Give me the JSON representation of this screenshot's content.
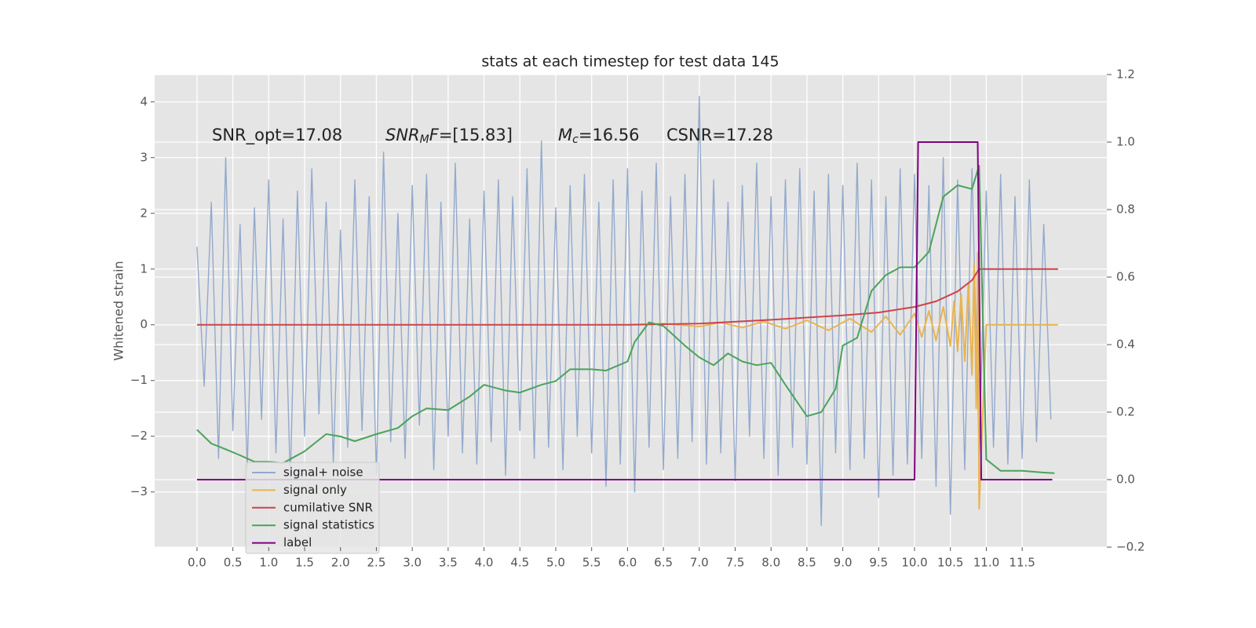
{
  "chart_data": {
    "type": "line",
    "title": "stats at each timestep for test data 145",
    "ylabel": "Whitened strain",
    "annotations": [
      [
        "SNR_opt=17.08"
      ],
      [
        "SNR",
        "M",
        "F=[15.83]"
      ],
      [
        "M",
        "c",
        "=16.56"
      ],
      [
        "CSNR=17.28"
      ]
    ],
    "xlim": [
      -0.59,
      12.68
    ],
    "xticks": [
      {
        "value": 0,
        "label": "0.0"
      },
      0.5,
      {
        "value": 1,
        "label": "1.0"
      },
      1.5,
      {
        "value": 2,
        "label": "2.0"
      },
      2.5,
      {
        "value": 3,
        "label": "3.0"
      },
      3.5,
      {
        "value": 4,
        "label": "4.0"
      },
      4.5,
      {
        "value": 5,
        "label": "5.0"
      },
      5.5,
      {
        "value": 6,
        "label": "6.0"
      },
      6.5,
      {
        "value": 7,
        "label": "7.0"
      },
      7.5,
      {
        "value": 8,
        "label": "8.0"
      },
      8.5,
      {
        "value": 9,
        "label": "9.0"
      },
      9.5,
      {
        "value": 10,
        "label": "10.0"
      },
      10.5,
      {
        "value": 11,
        "label": "11.0"
      },
      11.5
    ],
    "ylim": [
      -3.99,
      4.49
    ],
    "yticks": [
      {
        "value": -3,
        "label": "−3"
      },
      {
        "value": -2,
        "label": "−2"
      },
      {
        "value": -1,
        "label": "−1"
      },
      0,
      1,
      2,
      3,
      4
    ],
    "y2lim": [
      -0.2,
      1.2
    ],
    "y2ticks": [
      {
        "value": -0.2,
        "label": "−0.2"
      },
      {
        "value": 0,
        "label": "0.0"
      },
      0.2,
      0.4,
      0.6,
      0.8,
      {
        "value": 1,
        "label": "1.0"
      },
      1.2
    ],
    "grid": true,
    "legend": "lower left",
    "series": [
      {
        "name": "signal+ noise",
        "color": "#93a9cc",
        "x": [
          0.0,
          0.1,
          0.2,
          0.3,
          0.4,
          0.5,
          0.6,
          0.7,
          0.8,
          0.9,
          1.0,
          1.1,
          1.2,
          1.3,
          1.4,
          1.5,
          1.6,
          1.7,
          1.8,
          1.9,
          2.0,
          2.1,
          2.2,
          2.3,
          2.4,
          2.5,
          2.6,
          2.7,
          2.8,
          2.9,
          3.0,
          3.1,
          3.2,
          3.3,
          3.4,
          3.5,
          3.6,
          3.7,
          3.8,
          3.9,
          4.0,
          4.1,
          4.2,
          4.3,
          4.4,
          4.5,
          4.6,
          4.7,
          4.8,
          4.9,
          5.0,
          5.1,
          5.2,
          5.3,
          5.4,
          5.5,
          5.6,
          5.7,
          5.8,
          5.9,
          6.0,
          6.1,
          6.2,
          6.3,
          6.4,
          6.5,
          6.6,
          6.7,
          6.8,
          6.9,
          7.0,
          7.1,
          7.2,
          7.3,
          7.4,
          7.5,
          7.6,
          7.7,
          7.8,
          7.9,
          8.0,
          8.1,
          8.2,
          8.3,
          8.4,
          8.5,
          8.6,
          8.7,
          8.8,
          8.9,
          9.0,
          9.1,
          9.2,
          9.3,
          9.4,
          9.5,
          9.6,
          9.7,
          9.8,
          9.9,
          10.0,
          10.1,
          10.2,
          10.3,
          10.4,
          10.5,
          10.6,
          10.7,
          10.8,
          10.9,
          11.0,
          11.1,
          11.2,
          11.3,
          11.4,
          11.5,
          11.6,
          11.7,
          11.8,
          11.9
        ],
        "values": [
          1.4,
          -1.1,
          2.2,
          -2.4,
          3.0,
          -1.9,
          1.8,
          -2.6,
          2.1,
          -1.7,
          2.6,
          -2.3,
          1.9,
          -2.8,
          2.4,
          -2.0,
          2.8,
          -1.6,
          2.2,
          -2.5,
          1.7,
          -2.2,
          2.6,
          -1.9,
          2.3,
          -2.7,
          3.1,
          -2.1,
          2.0,
          -2.4,
          2.5,
          -1.8,
          2.7,
          -2.6,
          2.2,
          -2.0,
          2.9,
          -2.3,
          1.9,
          -2.5,
          2.4,
          -2.1,
          2.6,
          -2.7,
          2.3,
          -1.9,
          2.8,
          -2.4,
          3.3,
          -2.2,
          2.1,
          -2.6,
          2.5,
          -2.0,
          2.7,
          -2.3,
          2.2,
          -2.9,
          2.6,
          -2.5,
          2.8,
          -3.0,
          2.4,
          -2.2,
          2.9,
          -2.6,
          2.3,
          -2.4,
          2.7,
          -2.1,
          4.1,
          -2.5,
          2.6,
          -2.3,
          2.2,
          -2.8,
          2.5,
          -2.0,
          2.9,
          -2.4,
          2.3,
          -2.7,
          2.6,
          -2.2,
          2.8,
          -2.5,
          2.4,
          -3.6,
          2.7,
          -2.3,
          2.5,
          -2.6,
          2.9,
          -2.4,
          2.6,
          -3.1,
          2.3,
          -2.7,
          2.8,
          -2.5,
          2.7,
          -2.4,
          2.5,
          -2.9,
          3.0,
          -3.4,
          2.6,
          -2.6,
          2.8,
          -2.3,
          2.4,
          -2.2,
          2.7,
          -2.5,
          2.3,
          -2.4,
          2.6,
          -2.1,
          1.8,
          -1.7
        ]
      },
      {
        "name": "signal only",
        "color": "#e8b450",
        "x": [
          6.0,
          6.5,
          7.0,
          7.3,
          7.6,
          7.9,
          8.2,
          8.5,
          8.8,
          9.1,
          9.4,
          9.6,
          9.8,
          10.0,
          10.1,
          10.2,
          10.3,
          10.4,
          10.5,
          10.55,
          10.6,
          10.65,
          10.7,
          10.75,
          10.8,
          10.83,
          10.86,
          10.88,
          10.9,
          11.0,
          12.0
        ],
        "values": [
          0,
          0.02,
          -0.03,
          0.04,
          -0.05,
          0.06,
          -0.07,
          0.08,
          -0.1,
          0.11,
          -0.13,
          0.15,
          -0.18,
          0.2,
          -0.22,
          0.25,
          -0.28,
          0.32,
          -0.38,
          0.42,
          -0.48,
          0.55,
          -0.65,
          0.75,
          -0.9,
          1.1,
          -1.5,
          1.3,
          -3.3,
          0,
          0
        ]
      },
      {
        "name": "cumilative SNR",
        "color": "#d0414a",
        "x": [
          0,
          6,
          7,
          8,
          9,
          9.5,
          10,
          10.3,
          10.6,
          10.8,
          10.85,
          10.9,
          12.0
        ],
        "values": [
          0,
          0,
          0.02,
          0.09,
          0.17,
          0.22,
          0.32,
          0.42,
          0.6,
          0.8,
          0.9,
          1.0,
          1.0
        ]
      },
      {
        "name": "signal statistics",
        "color": "#4aa35a",
        "axis": "y2",
        "x": [
          0,
          0.2,
          0.4,
          0.6,
          0.8,
          1.0,
          1.2,
          1.5,
          1.8,
          2.0,
          2.2,
          2.5,
          2.8,
          3.0,
          3.2,
          3.5,
          3.8,
          4.0,
          4.3,
          4.5,
          4.8,
          5.0,
          5.2,
          5.5,
          5.7,
          6.0,
          6.1,
          6.3,
          6.5,
          6.8,
          7.0,
          7.2,
          7.4,
          7.6,
          7.8,
          8.0,
          8.2,
          8.5,
          8.7,
          8.9,
          9.0,
          9.2,
          9.4,
          9.6,
          9.8,
          10.0,
          10.2,
          10.4,
          10.6,
          10.8,
          10.9,
          11.0,
          11.2,
          11.5,
          11.8,
          11.95
        ],
        "values": [
          0.148,
          0.107,
          0.09,
          0.072,
          0.053,
          0.053,
          0.049,
          0.084,
          0.135,
          0.128,
          0.114,
          0.135,
          0.153,
          0.188,
          0.211,
          0.206,
          0.246,
          0.281,
          0.264,
          0.258,
          0.281,
          0.292,
          0.327,
          0.327,
          0.323,
          0.35,
          0.408,
          0.466,
          0.455,
          0.397,
          0.362,
          0.339,
          0.374,
          0.35,
          0.339,
          0.346,
          0.281,
          0.188,
          0.2,
          0.269,
          0.397,
          0.42,
          0.559,
          0.606,
          0.629,
          0.629,
          0.675,
          0.838,
          0.872,
          0.861,
          0.93,
          0.06,
          0.026,
          0.026,
          0.021,
          0.019
        ]
      },
      {
        "name": "label",
        "color": "#800080",
        "axis": "y2",
        "x": [
          0,
          10.0,
          10.05,
          10.88,
          10.93,
          11.92
        ],
        "values": [
          0,
          0,
          1,
          1,
          0,
          0
        ]
      }
    ]
  }
}
